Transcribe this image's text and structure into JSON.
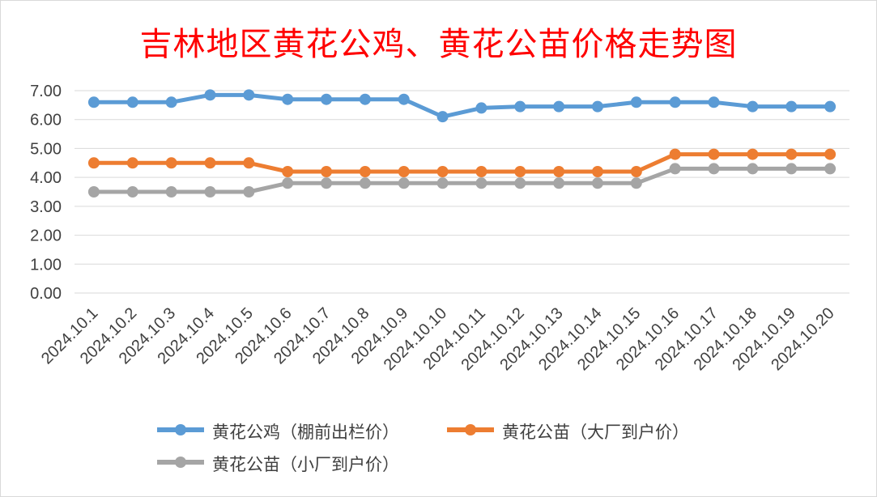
{
  "chart_data": {
    "type": "line",
    "title": "吉林地区黄花公鸡、黄花公苗价格走势图",
    "categories": [
      "2024.10.1",
      "2024.10.2",
      "2024.10.3",
      "2024.10.4",
      "2024.10.5",
      "2024.10.6",
      "2024.10.7",
      "2024.10.8",
      "2024.10.9",
      "2024.10.10",
      "2024.10.11",
      "2024.10.12",
      "2024.10.13",
      "2024.10.14",
      "2024.10.15",
      "2024.10.16",
      "2024.10.17",
      "2024.10.18",
      "2024.10.19",
      "2024.10.20"
    ],
    "y_ticks": [
      "0.00",
      "1.00",
      "2.00",
      "3.00",
      "4.00",
      "5.00",
      "6.00",
      "7.00"
    ],
    "ylim": [
      0,
      7
    ],
    "grid": true,
    "legend_position": "bottom",
    "series": [
      {
        "name": "黄花公鸡（棚前出栏价）",
        "color": "#5b9bd5",
        "values": [
          6.6,
          6.6,
          6.6,
          6.85,
          6.85,
          6.7,
          6.7,
          6.7,
          6.7,
          6.1,
          6.4,
          6.45,
          6.45,
          6.45,
          6.6,
          6.6,
          6.6,
          6.45,
          6.45,
          6.45
        ]
      },
      {
        "name": "黄花公苗（大厂到户价）",
        "color": "#ed7d31",
        "values": [
          4.5,
          4.5,
          4.5,
          4.5,
          4.5,
          4.2,
          4.2,
          4.2,
          4.2,
          4.2,
          4.2,
          4.2,
          4.2,
          4.2,
          4.2,
          4.8,
          4.8,
          4.8,
          4.8,
          4.8
        ]
      },
      {
        "name": "黄花公苗（小厂到户价）",
        "color": "#a5a5a5",
        "values": [
          3.5,
          3.5,
          3.5,
          3.5,
          3.5,
          3.8,
          3.8,
          3.8,
          3.8,
          3.8,
          3.8,
          3.8,
          3.8,
          3.8,
          3.8,
          4.3,
          4.3,
          4.3,
          4.3,
          4.3
        ]
      }
    ]
  }
}
